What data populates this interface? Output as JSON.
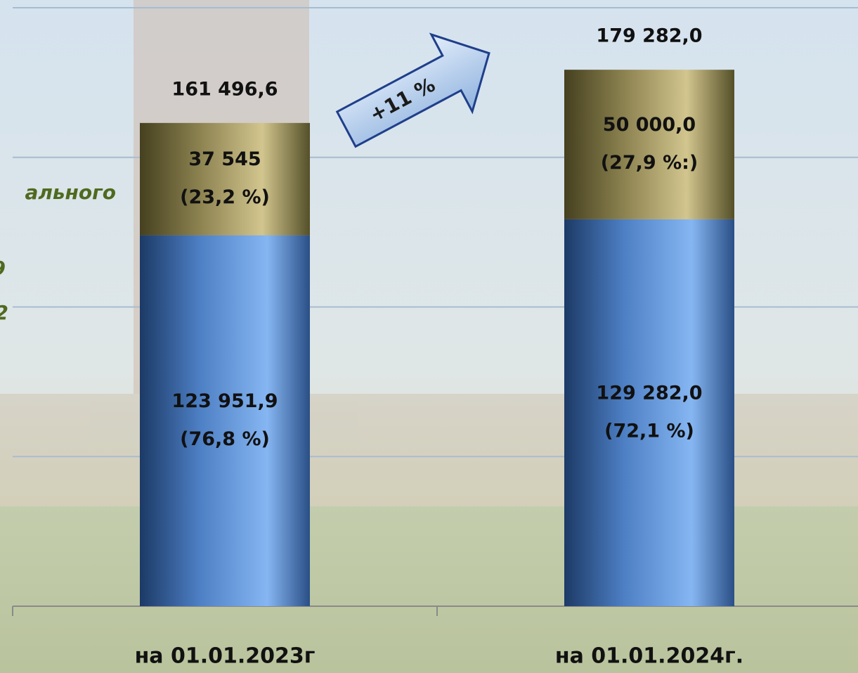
{
  "chart_data": {
    "type": "stacked_bar",
    "categories": [
      "на 01.01.2023г",
      "на 01.01.2024г."
    ],
    "series": [
      {
        "color": "#5b8fd6",
        "values": [
          123951.9,
          129282.0
        ],
        "value_labels": [
          [
            "123 951,9",
            "(76,8 %)"
          ],
          [
            "129 282,0",
            "(72,1 %)"
          ]
        ]
      },
      {
        "color": "#9c9160",
        "values": [
          37545,
          50000.0
        ],
        "value_labels": [
          [
            "37 545",
            "(23,2 %)"
          ],
          [
            "50 000,0",
            "(27,9 %:)"
          ]
        ]
      }
    ],
    "totals": {
      "values": [
        161496.6,
        179282.0
      ],
      "value_labels": [
        "161 496,6",
        "179 282,0"
      ]
    },
    "annotation": "+11 %",
    "cropped_texts": [
      "ального",
      "9",
      "2"
    ],
    "ylim": [
      0,
      200000
    ],
    "gridlines": [
      0,
      50000,
      100000,
      150000,
      200000
    ],
    "grid": true
  }
}
